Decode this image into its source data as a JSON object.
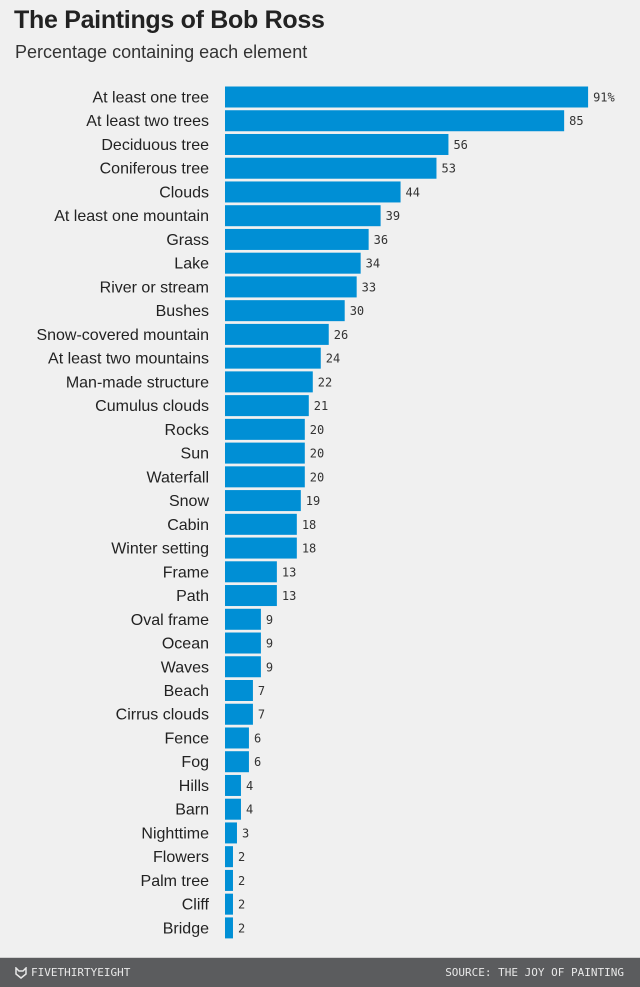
{
  "chart_data": {
    "type": "bar",
    "orientation": "horizontal",
    "title": "The Paintings of Bob Ross",
    "subtitle": "Percentage containing each element",
    "categories": [
      "At least one tree",
      "At least two trees",
      "Deciduous tree",
      "Coniferous tree",
      "Clouds",
      "At least one mountain",
      "Grass",
      "Lake",
      "River or stream",
      "Bushes",
      "Snow-covered mountain",
      "At least two mountains",
      "Man-made structure",
      "Cumulus clouds",
      "Rocks",
      "Sun",
      "Waterfall",
      "Snow",
      "Cabin",
      "Winter setting",
      "Frame",
      "Path",
      "Oval frame",
      "Ocean",
      "Waves",
      "Beach",
      "Cirrus clouds",
      "Fence",
      "Fog",
      "Hills",
      "Barn",
      "Nighttime",
      "Flowers",
      "Palm tree",
      "Cliff",
      "Bridge"
    ],
    "values": [
      91,
      85,
      56,
      53,
      44,
      39,
      36,
      34,
      33,
      30,
      26,
      24,
      22,
      21,
      20,
      20,
      20,
      19,
      18,
      18,
      13,
      13,
      9,
      9,
      9,
      7,
      7,
      6,
      6,
      4,
      4,
      3,
      2,
      2,
      2,
      2
    ],
    "value_suffix_first": "%",
    "xlim": [
      0,
      100
    ],
    "grid": false,
    "bar_color": "#008fd5"
  },
  "footer": {
    "brand": "FIVETHIRTYEIGHT",
    "brand_icon": "fox-icon",
    "source": "SOURCE: THE JOY OF PAINTING"
  }
}
